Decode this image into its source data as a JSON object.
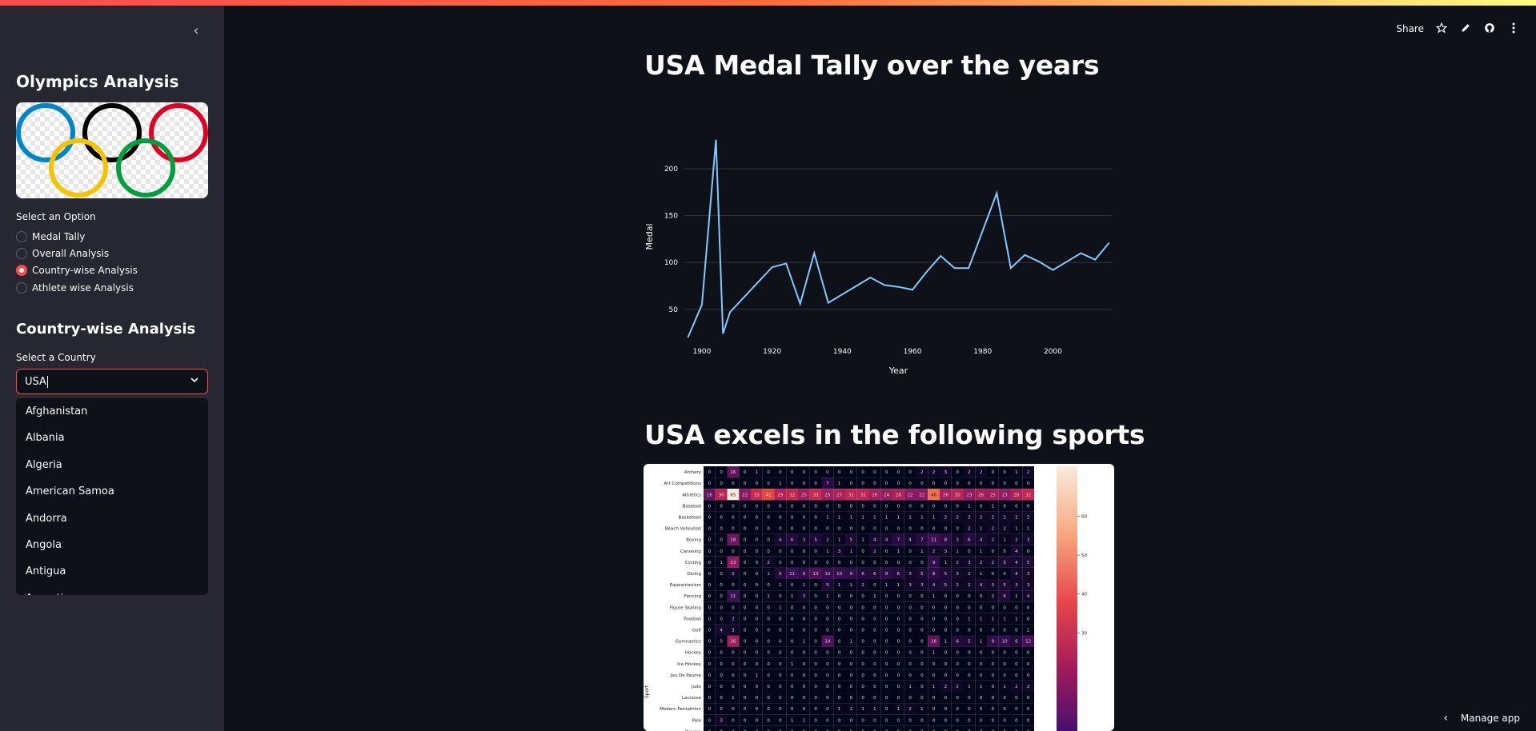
{
  "header": {
    "share_label": "Share",
    "icons": [
      "star-icon",
      "edit-icon",
      "github-icon",
      "more-icon"
    ]
  },
  "sidebar": {
    "title": "Olympics Analysis",
    "option_label": "Select an Option",
    "options": [
      {
        "label": "Medal Tally",
        "checked": false
      },
      {
        "label": "Overall Analysis",
        "checked": false
      },
      {
        "label": "Country-wise Analysis",
        "checked": true
      },
      {
        "label": "Athlete wise Analysis",
        "checked": false
      }
    ],
    "section_title": "Country-wise Analysis",
    "country_label": "Select a Country",
    "country_value": "USA",
    "dropdown_items": [
      "Afghanistan",
      "Albania",
      "Algeria",
      "American Samoa",
      "Andorra",
      "Angola",
      "Antigua",
      "Argentina"
    ]
  },
  "main": {
    "title1": "USA Medal Tally over the years",
    "title2": "USA excels in the following sports"
  },
  "chart_data": [
    {
      "type": "line",
      "title": "",
      "xlabel": "Year",
      "ylabel": "Medal",
      "xlim": [
        1895,
        2017
      ],
      "ylim": [
        20,
        235
      ],
      "xticks": [
        1900,
        1920,
        1940,
        1960,
        1980,
        2000
      ],
      "yticks": [
        50,
        100,
        150,
        200
      ],
      "grid": true,
      "color": "#83c9ff",
      "x": [
        1896,
        1900,
        1904,
        1906,
        1908,
        1912,
        1920,
        1924,
        1928,
        1932,
        1936,
        1948,
        1952,
        1956,
        1960,
        1964,
        1968,
        1972,
        1976,
        1984,
        1988,
        1992,
        1996,
        2000,
        2004,
        2008,
        2012,
        2016
      ],
      "y": [
        20,
        55,
        231,
        24,
        47,
        63,
        95,
        99,
        56,
        110,
        57,
        84,
        76,
        74,
        71,
        90,
        107,
        94,
        94,
        174,
        94,
        108,
        101,
        92,
        101,
        110,
        103,
        121
      ]
    },
    {
      "type": "heatmap",
      "ylabel": "Sport",
      "rows": [
        "Archery",
        "Art Competitions",
        "Athletics",
        "Baseball",
        "Basketball",
        "Beach Volleyball",
        "Boxing",
        "Canoeing",
        "Cycling",
        "Diving",
        "Equestrianism",
        "Fencing",
        "Figure Skating",
        "Football",
        "Golf",
        "Gymnastics",
        "Hockey",
        "Ice Hockey",
        "Jeu De Paume",
        "Judo",
        "Lacrosse",
        "Modern Pentathlon",
        "Polo",
        "Rowing"
      ],
      "colorbar_ticks": [
        60,
        50,
        40,
        30
      ],
      "values": [
        [
          0,
          0,
          16,
          0,
          1,
          0,
          0,
          0,
          0,
          0,
          0,
          0,
          0,
          0,
          0,
          0,
          0,
          0,
          2,
          2,
          3,
          0,
          2,
          2,
          0,
          0,
          1,
          2
        ],
        [
          0,
          0,
          0,
          0,
          0,
          0,
          1,
          0,
          0,
          0,
          7,
          1,
          0,
          0,
          0,
          0,
          0,
          0,
          0,
          0,
          0,
          0,
          0,
          0,
          0,
          0,
          0,
          0
        ],
        [
          16,
          30,
          65,
          22,
          33,
          41,
          29,
          32,
          25,
          33,
          25,
          27,
          31,
          31,
          26,
          24,
          28,
          22,
          22,
          48,
          26,
          30,
          23,
          26,
          25,
          23,
          28,
          32
        ],
        [
          0,
          0,
          0,
          0,
          0,
          0,
          0,
          0,
          0,
          0,
          0,
          0,
          0,
          0,
          0,
          0,
          0,
          0,
          0,
          0,
          0,
          0,
          1,
          0,
          1,
          0,
          0,
          0
        ],
        [
          0,
          0,
          0,
          0,
          0,
          0,
          0,
          0,
          0,
          0,
          1,
          1,
          1,
          1,
          1,
          1,
          1,
          1,
          1,
          1,
          2,
          2,
          2,
          2,
          2,
          2,
          2,
          2
        ],
        [
          0,
          0,
          0,
          0,
          0,
          0,
          0,
          0,
          0,
          0,
          0,
          0,
          0,
          0,
          0,
          0,
          0,
          0,
          0,
          0,
          0,
          0,
          2,
          1,
          2,
          2,
          1,
          1
        ],
        [
          0,
          0,
          18,
          0,
          0,
          0,
          4,
          6,
          3,
          5,
          2,
          1,
          5,
          1,
          4,
          4,
          7,
          4,
          7,
          11,
          8,
          3,
          6,
          4,
          2,
          1,
          2,
          3
        ],
        [
          0,
          0,
          0,
          0,
          0,
          0,
          0,
          0,
          0,
          0,
          1,
          3,
          1,
          0,
          2,
          0,
          1,
          0,
          1,
          2,
          3,
          1,
          0,
          1,
          0,
          0,
          4,
          0
        ],
        [
          0,
          1,
          23,
          0,
          0,
          2,
          0,
          0,
          0,
          0,
          0,
          0,
          0,
          0,
          0,
          0,
          0,
          0,
          0,
          9,
          1,
          2,
          3,
          2,
          2,
          5,
          4,
          5
        ],
        [
          0,
          0,
          2,
          0,
          0,
          1,
          6,
          11,
          9,
          13,
          10,
          10,
          9,
          6,
          6,
          8,
          6,
          3,
          5,
          8,
          5,
          3,
          2,
          1,
          0,
          0,
          4,
          3
        ],
        [
          0,
          0,
          0,
          0,
          0,
          0,
          1,
          0,
          1,
          0,
          5,
          1,
          1,
          2,
          0,
          1,
          1,
          3,
          3,
          4,
          5,
          2,
          2,
          4,
          3,
          5,
          3,
          3
        ],
        [
          0,
          0,
          11,
          0,
          0,
          1,
          0,
          1,
          3,
          0,
          1,
          0,
          0,
          0,
          1,
          0,
          0,
          0,
          0,
          1,
          0,
          0,
          0,
          0,
          2,
          6,
          1,
          4
        ],
        [
          0,
          0,
          0,
          0,
          0,
          0,
          1,
          0,
          0,
          0,
          0,
          0,
          0,
          0,
          0,
          0,
          0,
          0,
          0,
          0,
          0,
          0,
          0,
          0,
          0,
          0,
          0,
          0
        ],
        [
          0,
          0,
          2,
          0,
          0,
          0,
          0,
          0,
          0,
          0,
          0,
          0,
          0,
          0,
          0,
          0,
          0,
          0,
          0,
          0,
          0,
          0,
          1,
          1,
          1,
          1,
          1,
          0
        ],
        [
          0,
          4,
          3,
          0,
          0,
          0,
          0,
          0,
          0,
          0,
          0,
          0,
          0,
          0,
          0,
          0,
          0,
          0,
          0,
          0,
          0,
          0,
          0,
          0,
          0,
          0,
          0,
          1
        ],
        [
          0,
          0,
          26,
          0,
          0,
          0,
          0,
          0,
          1,
          0,
          14,
          0,
          1,
          0,
          0,
          0,
          0,
          0,
          0,
          16,
          1,
          6,
          5,
          1,
          9,
          10,
          6,
          12
        ],
        [
          0,
          0,
          0,
          0,
          0,
          0,
          0,
          0,
          0,
          0,
          0,
          0,
          0,
          0,
          0,
          0,
          0,
          0,
          0,
          1,
          0,
          0,
          0,
          0,
          0,
          0,
          0,
          0
        ],
        [
          0,
          0,
          0,
          0,
          0,
          0,
          0,
          1,
          0,
          0,
          0,
          0,
          0,
          0,
          0,
          0,
          0,
          0,
          0,
          0,
          0,
          0,
          0,
          0,
          0,
          0,
          0,
          0
        ],
        [
          0,
          0,
          0,
          0,
          1,
          0,
          0,
          0,
          0,
          0,
          0,
          0,
          0,
          0,
          0,
          0,
          0,
          0,
          0,
          0,
          0,
          0,
          0,
          0,
          0,
          0,
          0,
          0
        ],
        [
          0,
          0,
          0,
          0,
          0,
          0,
          0,
          0,
          0,
          0,
          0,
          0,
          0,
          0,
          0,
          0,
          0,
          1,
          0,
          1,
          2,
          2,
          1,
          1,
          0,
          1,
          2,
          2
        ],
        [
          0,
          0,
          1,
          0,
          0,
          0,
          0,
          0,
          0,
          0,
          0,
          0,
          0,
          0,
          0,
          0,
          0,
          0,
          0,
          0,
          0,
          0,
          0,
          0,
          0,
          0,
          0,
          0
        ],
        [
          0,
          0,
          0,
          0,
          0,
          0,
          0,
          0,
          0,
          0,
          0,
          1,
          1,
          1,
          1,
          0,
          1,
          2,
          1,
          0,
          0,
          0,
          0,
          0,
          0,
          0,
          0,
          0
        ],
        [
          0,
          3,
          0,
          0,
          0,
          0,
          0,
          1,
          1,
          0,
          0,
          0,
          0,
          0,
          0,
          0,
          0,
          0,
          0,
          0,
          0,
          0,
          0,
          0,
          0,
          0,
          0,
          0
        ],
        [
          0,
          0,
          0,
          0,
          0,
          0,
          0,
          0,
          0,
          0,
          0,
          0,
          0,
          0,
          0,
          0,
          0,
          0,
          0,
          0,
          0,
          0,
          0,
          0,
          0,
          0,
          0,
          0
        ]
      ]
    }
  ]
}
